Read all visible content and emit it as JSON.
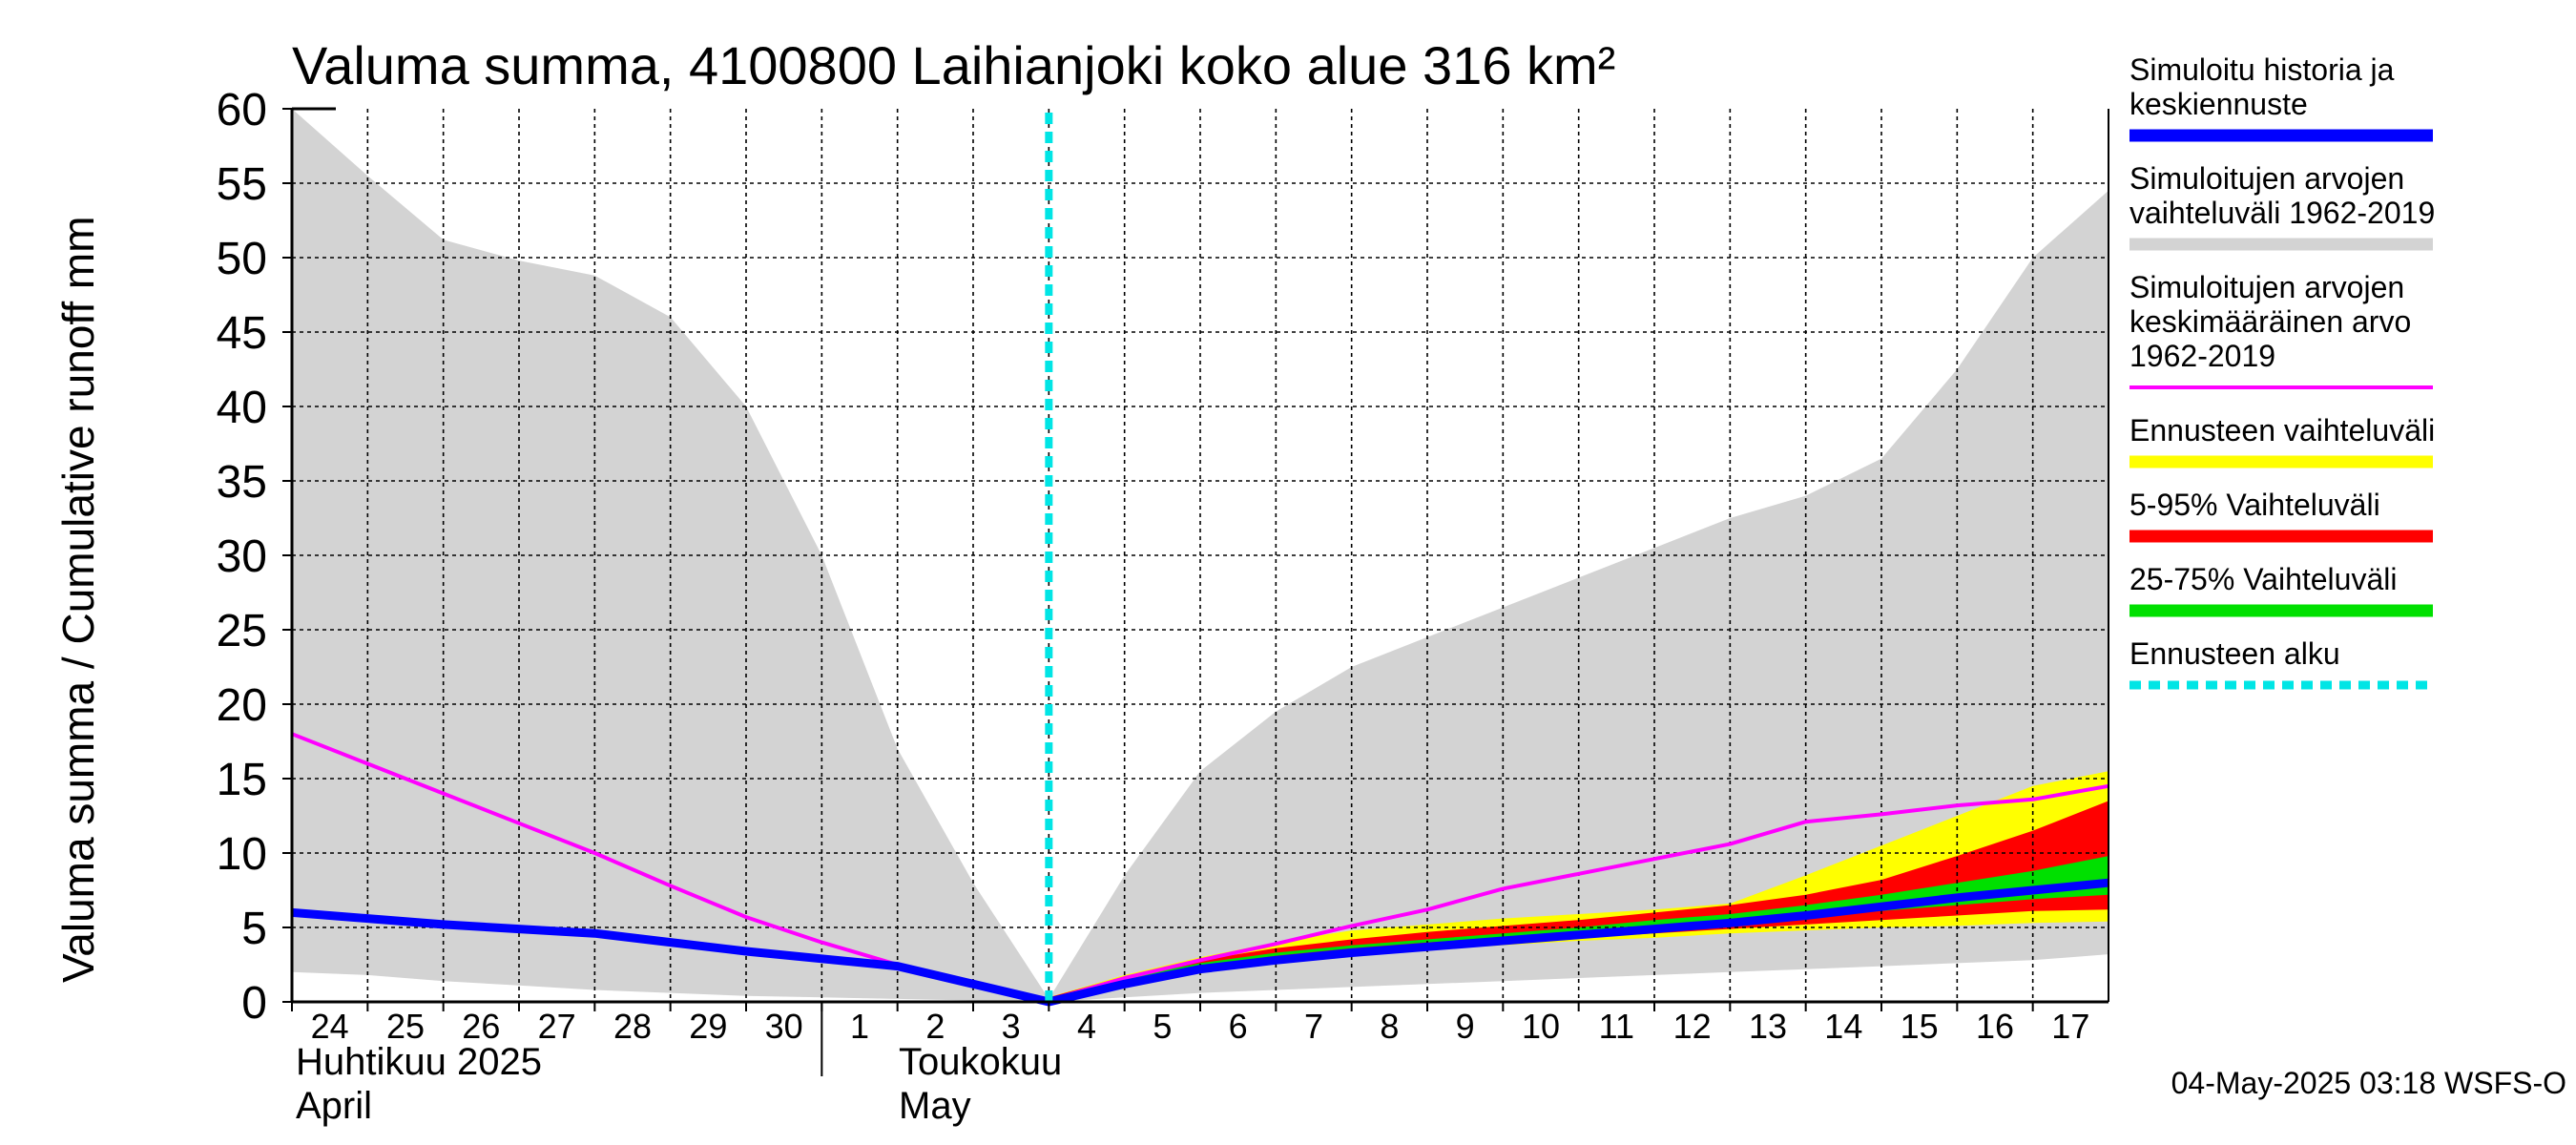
{
  "chart_data": {
    "type": "area",
    "title": "Valuma summa, 4100800 Laihianjoki koko alue 316 km²",
    "ylabel": "Valuma summa / Cumulative runoff    mm",
    "ylim": [
      0,
      60
    ],
    "yticks": [
      0,
      5,
      10,
      15,
      20,
      25,
      30,
      35,
      40,
      45,
      50,
      55,
      60
    ],
    "xlim": [
      0,
      24
    ],
    "x_tick_labels": [
      "24",
      "25",
      "26",
      "27",
      "28",
      "29",
      "30",
      "1",
      "2",
      "3",
      "4",
      "5",
      "6",
      "7",
      "8",
      "9",
      "10",
      "11",
      "12",
      "13",
      "14",
      "15",
      "16",
      "17"
    ],
    "month_labels": {
      "april": {
        "line1": "Huhtikuu  2025",
        "line2": "April"
      },
      "may": {
        "line1": "Toukokuu",
        "line2": "May"
      }
    },
    "forecast_start_x": 10,
    "grid": true,
    "series": [
      {
        "name": "Simuloitujen arvojen vaihteluväli 1962-2019",
        "kind": "band",
        "color": "#d3d3d3",
        "x": [
          0,
          1,
          2,
          3,
          4,
          5,
          6,
          7,
          8,
          9,
          10,
          11,
          12,
          13,
          14,
          15,
          16,
          17,
          18,
          19,
          20,
          21,
          22,
          23,
          24
        ],
        "upper": [
          60,
          55.5,
          51.2,
          49.8,
          48.8,
          46,
          40,
          30,
          17,
          8,
          0.2,
          8.5,
          15.5,
          19.5,
          22.5,
          24.5,
          26.5,
          28.5,
          30.5,
          32.5,
          34,
          36.5,
          42.5,
          50,
          54.5
        ],
        "lower": [
          2,
          1.8,
          1.4,
          1.1,
          0.8,
          0.6,
          0.4,
          0.3,
          0.2,
          0.1,
          0,
          0.3,
          0.6,
          0.8,
          1,
          1.2,
          1.4,
          1.6,
          1.8,
          2,
          2.2,
          2.4,
          2.6,
          2.8,
          3.2
        ]
      },
      {
        "name": "Ennusteen vaihteluväli",
        "kind": "band",
        "color": "#ffff00",
        "x": [
          10,
          11,
          12,
          13,
          14,
          15,
          16,
          17,
          18,
          19,
          20,
          21,
          22,
          23,
          24
        ],
        "upper": [
          0.3,
          1.8,
          3,
          4,
          4.8,
          5.2,
          5.6,
          5.9,
          6.2,
          6.6,
          8.5,
          10.5,
          12.5,
          14.5,
          15.5
        ],
        "lower": [
          0.1,
          1.2,
          2.2,
          2.8,
          3.2,
          3.5,
          3.8,
          4.1,
          4.3,
          4.6,
          4.8,
          5,
          5.1,
          5.3,
          5.4
        ]
      },
      {
        "name": "5-95% Vaihteluväli",
        "kind": "band",
        "color": "#ff0000",
        "x": [
          10,
          11,
          12,
          13,
          14,
          15,
          16,
          17,
          18,
          19,
          20,
          21,
          22,
          23,
          24
        ],
        "upper": [
          0.3,
          1.7,
          2.8,
          3.6,
          4.2,
          4.7,
          5.1,
          5.5,
          6,
          6.5,
          7.2,
          8.2,
          9.8,
          11.5,
          13.5
        ],
        "lower": [
          0.1,
          1.3,
          2.3,
          3,
          3.4,
          3.7,
          4,
          4.3,
          4.6,
          4.9,
          5.2,
          5.5,
          5.8,
          6.1,
          6.2
        ]
      },
      {
        "name": "25-75% Vaihteluväli",
        "kind": "band",
        "color": "#00e000",
        "x": [
          10,
          11,
          12,
          13,
          14,
          15,
          16,
          17,
          18,
          19,
          20,
          21,
          22,
          23,
          24
        ],
        "upper": [
          0.2,
          1.6,
          2.6,
          3.3,
          3.8,
          4.2,
          4.6,
          5,
          5.5,
          5.9,
          6.5,
          7.2,
          8,
          8.8,
          9.8
        ],
        "lower": [
          0.1,
          1.4,
          2.4,
          3.1,
          3.6,
          4,
          4.3,
          4.6,
          4.9,
          5.3,
          5.7,
          6.1,
          6.5,
          6.9,
          7.2
        ]
      },
      {
        "name": "Simuloitujen arvojen keskimääräinen arvo 1962-2019",
        "kind": "line",
        "color": "#ff00ff",
        "width": 4,
        "x": [
          0,
          1,
          2,
          3,
          4,
          5,
          6,
          7,
          8,
          9,
          10,
          11,
          12,
          13,
          14,
          15,
          16,
          17,
          18,
          19,
          20,
          21,
          22,
          23,
          24
        ],
        "values": [
          18,
          16,
          14,
          12,
          10,
          7.8,
          5.7,
          4,
          2.5,
          1.3,
          0.1,
          1.6,
          2.8,
          3.9,
          5.1,
          6.2,
          7.6,
          8.6,
          9.6,
          10.6,
          12.1,
          12.6,
          13.2,
          13.6,
          14.5
        ]
      },
      {
        "name": "Simuloitu historia ja keskiennuste",
        "kind": "line",
        "color": "#0000ff",
        "width": 9,
        "x": [
          0,
          1,
          2,
          3,
          4,
          5,
          6,
          7,
          8,
          9,
          10,
          11,
          12,
          13,
          14,
          15,
          16,
          17,
          18,
          19,
          20,
          21,
          22,
          23,
          24
        ],
        "values": [
          6,
          5.6,
          5.2,
          4.9,
          4.6,
          4,
          3.4,
          2.9,
          2.4,
          1.2,
          0,
          1.2,
          2.2,
          2.8,
          3.3,
          3.7,
          4.1,
          4.5,
          4.9,
          5.3,
          5.8,
          6.4,
          7,
          7.5,
          8
        ]
      }
    ],
    "legend": [
      {
        "lines": [
          "Simuloitu historia ja",
          "keskiennuste"
        ],
        "color": "#0000ff",
        "style": "solid"
      },
      {
        "lines": [
          "Simuloitujen arvojen",
          "vaihteluväli 1962-2019"
        ],
        "color": "#d3d3d3",
        "style": "solid"
      },
      {
        "lines": [
          "Simuloitujen arvojen",
          "keskimääräinen arvo",
          "   1962-2019"
        ],
        "color": "#ff00ff",
        "style": "thin"
      },
      {
        "lines": [
          "Ennusteen vaihteluväli"
        ],
        "color": "#ffff00",
        "style": "solid"
      },
      {
        "lines": [
          "5-95% Vaihteluväli"
        ],
        "color": "#ff0000",
        "style": "solid"
      },
      {
        "lines": [
          "25-75% Vaihteluväli"
        ],
        "color": "#00e000",
        "style": "solid"
      },
      {
        "lines": [
          "Ennusteen alku"
        ],
        "color": "#00e5e5",
        "style": "dashed"
      }
    ],
    "forecast_line_color": "#00e5e5",
    "timestamp": "04-May-2025 03:18 WSFS-O"
  }
}
